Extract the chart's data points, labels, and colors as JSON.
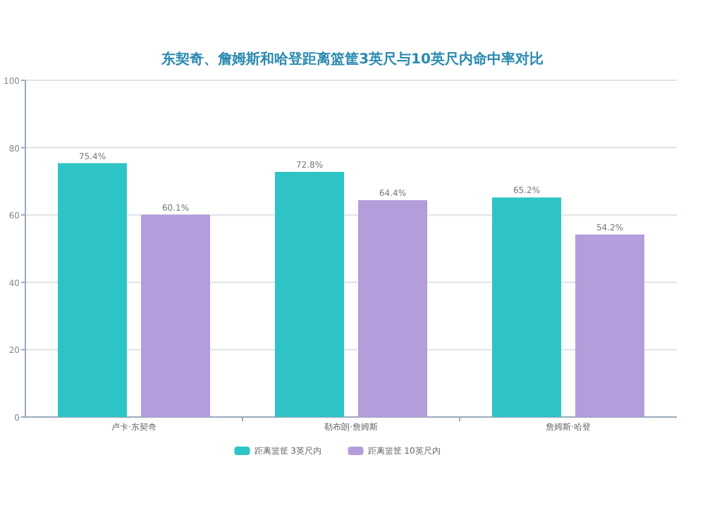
{
  "chart_data": {
    "type": "bar",
    "title": "东契奇、詹姆斯和哈登距离篮筐3英尺与10英尺内命中率对比",
    "categories": [
      "卢卡·东契奇",
      "勒布朗·詹姆斯",
      "詹姆斯·哈登"
    ],
    "series": [
      {
        "name": "距离篮筐 3英尺内",
        "color": "#2ec4c6",
        "values": [
          75.4,
          72.8,
          65.2
        ],
        "value_labels": [
          "75.4%",
          "72.8%",
          "65.2%"
        ]
      },
      {
        "name": "距离篮筐 10英尺内",
        "color": "#b39ddb",
        "values": [
          60.1,
          64.4,
          54.2
        ],
        "value_labels": [
          "60.1%",
          "64.4%",
          "54.2%"
        ]
      }
    ],
    "ylim": [
      0,
      100
    ],
    "yticks": [
      0,
      20,
      40,
      60,
      80,
      100
    ],
    "grid": "y",
    "legend": "bottom"
  }
}
